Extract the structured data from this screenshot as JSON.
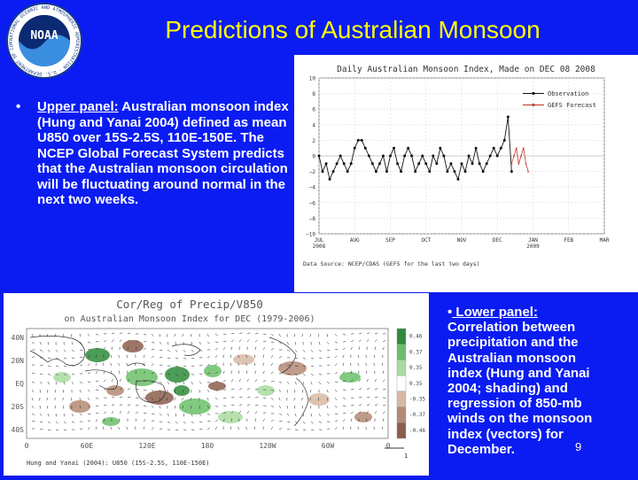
{
  "slide": {
    "title": "Predictions of Australian Monsoon",
    "page_number": "9",
    "logo": {
      "text": "NOAA",
      "ring_text": "NATIONAL OCEANIC AND ATMOSPHERIC ADMINISTRATION · U.S. DEPARTMENT OF COMMERCE",
      "icon": "noaa-logo-icon"
    }
  },
  "upper_panel": {
    "bullet": "•",
    "label": "Upper panel:",
    "text": " Australian monsoon index (Hung and Yanai 2004) defined as mean U850 over 15S-2.5S, 110E-150E. The NCEP Global Forecast System predicts that the Australian monsoon circulation will be fluctuating around normal in the next two weeks."
  },
  "lower_panel": {
    "bullet": "•",
    "label": " Lower panel:",
    "text": " Correlation between precipitation and the Australian monsoon index (Hung and Yanai 2004; shading) and regression of 850-mb winds on the monsoon index (vectors) for December."
  },
  "chart_data": [
    {
      "type": "line",
      "title": "Daily Australian Monsoon Index, Made on DEC 08 2008",
      "ylim": [
        -10,
        10
      ],
      "y_ticks": [
        "10",
        "8",
        "6",
        "4",
        "2",
        "0",
        "−2",
        "−4",
        "−6",
        "−8",
        "−10"
      ],
      "x_ticks": [
        {
          "top": "JUL",
          "bottom": "2008"
        },
        {
          "top": "AUG",
          "bottom": ""
        },
        {
          "top": "SEP",
          "bottom": ""
        },
        {
          "top": "OCT",
          "bottom": ""
        },
        {
          "top": "NOV",
          "bottom": ""
        },
        {
          "top": "DEC",
          "bottom": ""
        },
        {
          "top": "JAN",
          "bottom": "2009"
        },
        {
          "top": "FEB",
          "bottom": ""
        },
        {
          "top": "MAR",
          "bottom": ""
        }
      ],
      "legend_placement": "top-right",
      "series": [
        {
          "name": "Observation",
          "color": "#111111",
          "x": [
            0,
            3,
            6,
            9,
            12,
            15,
            18,
            21,
            24,
            27,
            30,
            33,
            36,
            39,
            42,
            45,
            48,
            51,
            54,
            57,
            60,
            63,
            66,
            69,
            72,
            75,
            78,
            81,
            84,
            87,
            90,
            93,
            96,
            99,
            102,
            105,
            108,
            111,
            114,
            117,
            120,
            123,
            126,
            129,
            132,
            135,
            138,
            141,
            144,
            147,
            150,
            153,
            156,
            159,
            162
          ],
          "values": [
            0,
            -2,
            -1,
            -3,
            -2,
            -1,
            0,
            -1,
            -2,
            -1,
            1,
            2,
            2,
            1,
            0,
            -1,
            -2,
            -1,
            0,
            -2,
            0,
            1,
            -1,
            -2,
            0,
            1,
            0,
            -2,
            -1,
            0,
            -1,
            -2,
            0,
            -1,
            1,
            0,
            -2,
            -1,
            -2,
            -3,
            -1,
            -2,
            0,
            -1,
            1,
            -1,
            -2,
            -1,
            0,
            1,
            0,
            1,
            2,
            5,
            -2
          ]
        },
        {
          "name": "GEFS Forecast",
          "color": "#c0392b",
          "x": [
            162,
            164,
            166,
            168,
            170,
            172,
            174,
            176
          ],
          "values": [
            -1,
            0,
            1,
            -1,
            0,
            1,
            -1,
            -2
          ]
        }
      ],
      "source_note": "Data Source: NCEP/CDAS (GEFS for the last two days)"
    },
    {
      "type": "heatmap",
      "title": "Cor/Reg of Precip/V850",
      "subtitle": "on Australian Monsoon Index for DEC (1979-2006)",
      "y_ticks": [
        "40N",
        "20N",
        "EQ",
        "20S",
        "40S"
      ],
      "x_ticks": [
        "0",
        "60E",
        "120E",
        "180",
        "120W",
        "60W",
        "0"
      ],
      "colorbar_ticks": [
        "0.46",
        "0.37",
        "0.35",
        "0.35",
        "-0.35",
        "-0.37",
        "-0.46"
      ],
      "colorbar_colors": [
        "#2e8b3a",
        "#6cbf6a",
        "#a9dca0",
        "#ffffff",
        "#d9b8a3",
        "#b48a74",
        "#8b5e4c"
      ],
      "vector_scale_label": "1",
      "caption": "Hung and Yanai (2004): U850 (15S-2.5S, 110E-150E)"
    }
  ]
}
